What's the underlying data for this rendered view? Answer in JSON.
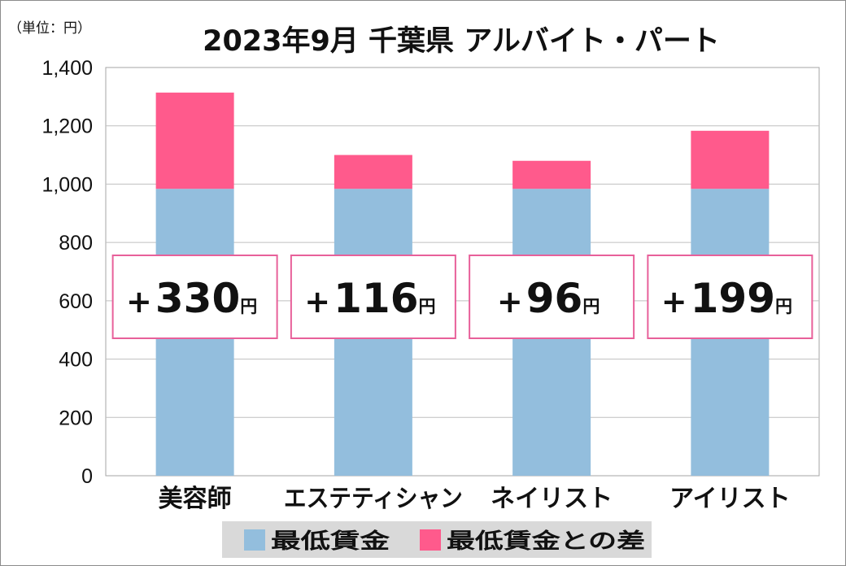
{
  "unit_note": "（単位：円）",
  "diff_unit": "円",
  "chart_data": {
    "type": "bar",
    "stacked": true,
    "title": "2023年9月 千葉県 アルバイト・パート",
    "categories": [
      "美容師",
      "エステティシャン",
      "ネイリスト",
      "アイリスト"
    ],
    "series": [
      {
        "name": "最低賃金",
        "color": "#93bedd",
        "values": [
          984,
          984,
          984,
          984
        ]
      },
      {
        "name": "最低賃金との差",
        "color": "#ff5a8c",
        "values": [
          330,
          116,
          96,
          199
        ]
      }
    ],
    "annotations": [
      "+330",
      "+116",
      "+96",
      "+199"
    ],
    "ylim": [
      0,
      1400
    ],
    "yticks": [
      "0",
      "200",
      "400",
      "600",
      "800",
      "1,000",
      "1,200",
      "1,400"
    ],
    "grid": true,
    "legend_position": "bottom"
  }
}
